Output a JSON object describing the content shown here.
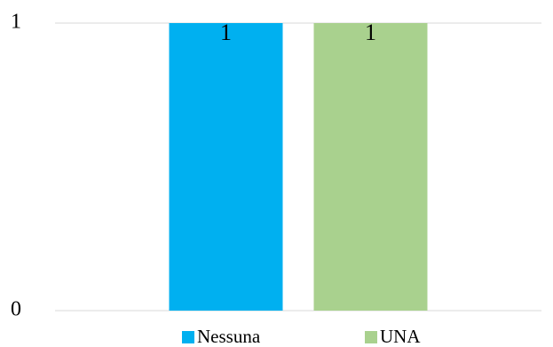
{
  "chart_data": {
    "type": "bar",
    "categories": [
      null
    ],
    "series": [
      {
        "name": "Nessuna",
        "color": "#00b0f0",
        "values": [
          1
        ]
      },
      {
        "name": "UNA",
        "color": "#a9d18e",
        "values": [
          1
        ]
      }
    ],
    "ylim": [
      0,
      1
    ],
    "yticks": [
      0,
      1
    ],
    "grid": true,
    "legend": "bottom"
  }
}
